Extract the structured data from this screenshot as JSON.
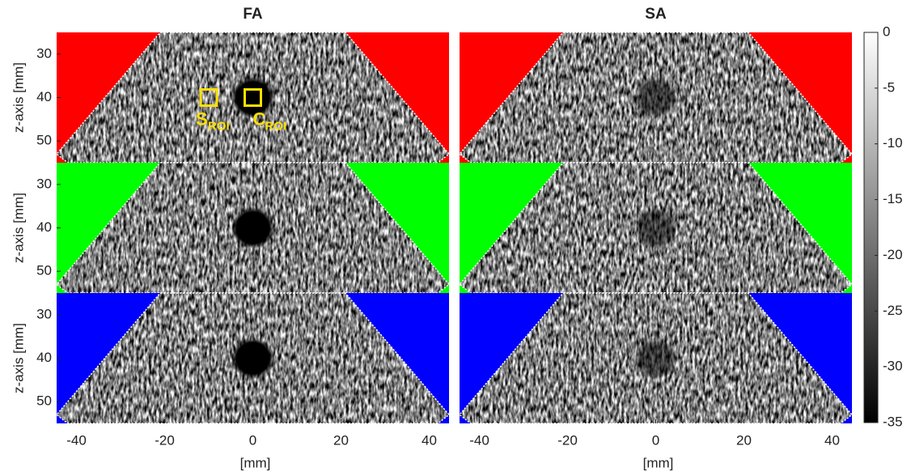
{
  "chart_data": {
    "type": "image-grid",
    "columns": [
      "FA",
      "SA"
    ],
    "row_colors": [
      "#ff0000",
      "#00ff00",
      "#0000ff"
    ],
    "xlabel": "[mm]",
    "ylabel": "z-axis [mm]",
    "xlim": [
      -44.5,
      44.5
    ],
    "xticks": [
      -40,
      -20,
      0,
      20,
      40
    ],
    "ylim": [
      25,
      55
    ],
    "yticks": [
      30,
      40,
      50
    ],
    "annotations": [
      {
        "text": "S",
        "sub": "ROI"
      },
      {
        "text": "C",
        "sub": "ROI"
      }
    ],
    "colorbar": {
      "clim": [
        -35,
        0
      ],
      "ticks": [
        0,
        -5,
        -10,
        -15,
        -20,
        -25,
        -30,
        -35
      ]
    }
  }
}
